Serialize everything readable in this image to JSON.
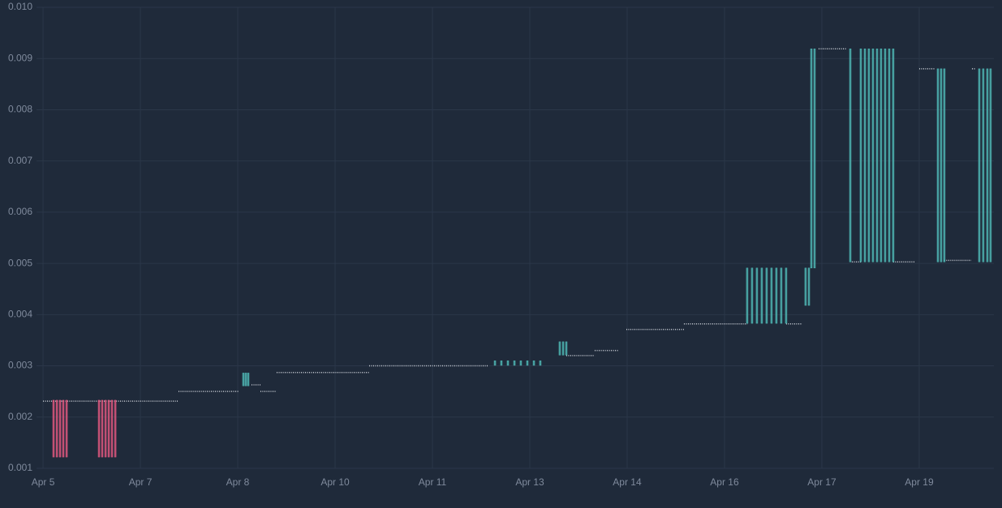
{
  "chart_data": {
    "type": "candlestick",
    "background": "#1f2a3a",
    "grid": true,
    "grid_color": "#2b3749",
    "up_color": "#4fb6b4",
    "down_color": "#e0587f",
    "level_color": "#c9ced6",
    "xlim": [
      -0.067,
      9.767
    ],
    "xticks": [
      {
        "value": 0,
        "label": "Apr 5"
      },
      {
        "value": 1,
        "label": "Apr 7"
      },
      {
        "value": 2,
        "label": "Apr 8"
      },
      {
        "value": 3,
        "label": "Apr 10"
      },
      {
        "value": 4,
        "label": "Apr 11"
      },
      {
        "value": 5,
        "label": "Apr 13"
      },
      {
        "value": 6,
        "label": "Apr 14"
      },
      {
        "value": 7,
        "label": "Apr 16"
      },
      {
        "value": 8,
        "label": "Apr 17"
      },
      {
        "value": 9,
        "label": "Apr 19"
      }
    ],
    "ylim": [
      0.001,
      0.0101
    ],
    "yticks": [
      0.001,
      0.002,
      0.003,
      0.004,
      0.005,
      0.006,
      0.007,
      0.008,
      0.009,
      {
        "value": 0.01,
        "label": "0.010"
      }
    ],
    "candles": {
      "x": [
        0.108,
        0.142,
        0.175,
        0.208,
        0.242,
        0.575,
        0.608,
        0.642,
        0.675,
        0.708,
        0.742,
        2.058,
        2.083,
        2.108,
        4.642,
        4.708,
        4.775,
        4.842,
        4.908,
        4.975,
        5.042,
        5.108,
        5.308,
        5.342,
        5.375,
        7.233,
        7.283,
        7.333,
        7.383,
        7.433,
        7.483,
        7.533,
        7.583,
        7.633,
        7.833,
        7.867,
        7.892,
        7.925,
        8.292,
        8.4,
        8.442,
        8.483,
        8.525,
        8.567,
        8.608,
        8.65,
        8.692,
        8.733,
        9.192,
        9.225,
        9.258,
        9.617,
        9.658,
        9.7,
        9.733
      ],
      "open": [
        0.00233,
        0.00233,
        0.00233,
        0.00233,
        0.00233,
        0.00233,
        0.00233,
        0.00233,
        0.00233,
        0.00233,
        0.00233,
        0.00261,
        0.00261,
        0.00261,
        0.00301,
        0.00301,
        0.00301,
        0.00301,
        0.00301,
        0.00301,
        0.00301,
        0.00301,
        0.00321,
        0.00321,
        0.00321,
        0.00383,
        0.00383,
        0.00383,
        0.00383,
        0.00383,
        0.00383,
        0.00383,
        0.00383,
        0.00383,
        0.00418,
        0.00418,
        0.00491,
        0.00491,
        0.00503,
        0.00503,
        0.00503,
        0.00503,
        0.00503,
        0.00503,
        0.00503,
        0.00503,
        0.00503,
        0.00503,
        0.00503,
        0.00503,
        0.00503,
        0.00503,
        0.00503,
        0.00503,
        0.00503
      ],
      "close": [
        0.00122,
        0.00122,
        0.00122,
        0.00122,
        0.00122,
        0.00122,
        0.00122,
        0.00122,
        0.00122,
        0.00122,
        0.00122,
        0.00286,
        0.00286,
        0.00286,
        0.0031,
        0.0031,
        0.0031,
        0.0031,
        0.0031,
        0.0031,
        0.0031,
        0.0031,
        0.00347,
        0.00347,
        0.00347,
        0.00491,
        0.00491,
        0.00491,
        0.00491,
        0.00491,
        0.00491,
        0.00491,
        0.00491,
        0.00491,
        0.00491,
        0.00491,
        0.00919,
        0.00919,
        0.00919,
        0.00919,
        0.00919,
        0.00919,
        0.00919,
        0.00919,
        0.00919,
        0.00919,
        0.00919,
        0.00919,
        0.0088,
        0.0088,
        0.0088,
        0.0088,
        0.0088,
        0.0088,
        0.0088
      ]
    },
    "levels": {
      "x": [
        0,
        1.392,
        null,
        1.392,
        2.017,
        null,
        2.142,
        2.233,
        null,
        2.233,
        2.4,
        null,
        2.4,
        3.35,
        null,
        3.35,
        4.575,
        null,
        5.375,
        5.667,
        null,
        5.667,
        5.908,
        null,
        5.992,
        6.583,
        null,
        6.583,
        7.233,
        null,
        7.633,
        7.8,
        null,
        7.967,
        8.258,
        null,
        8.308,
        8.4,
        null,
        8.733,
        8.958,
        null,
        9.0,
        9.158,
        null,
        9.258,
        9.533,
        null,
        9.542,
        9.583
      ],
      "values": [
        0.00231,
        0.00231,
        null,
        0.0025,
        0.0025,
        null,
        0.00263,
        0.00263,
        null,
        0.0025,
        0.0025,
        null,
        0.00287,
        0.00287,
        null,
        0.003,
        0.003,
        null,
        0.0032,
        0.0032,
        null,
        0.0033,
        0.0033,
        null,
        0.00371,
        0.00371,
        null,
        0.00382,
        0.00382,
        null,
        0.00382,
        0.00382,
        null,
        0.00919,
        0.00919,
        null,
        0.00503,
        0.00503,
        null,
        0.00503,
        0.00503,
        null,
        0.0088,
        0.0088,
        null,
        0.00506,
        0.00506,
        null,
        0.0088,
        0.0088
      ]
    }
  }
}
